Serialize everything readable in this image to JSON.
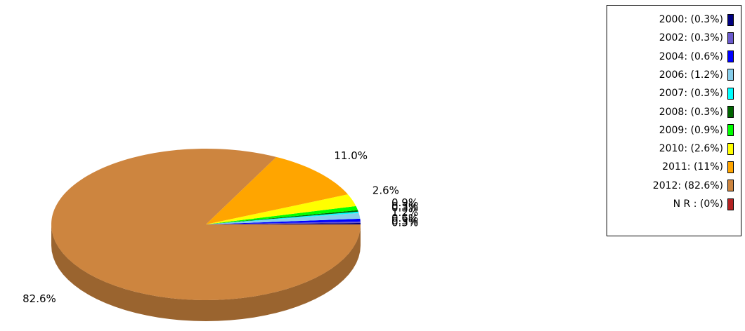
{
  "chart_data": {
    "type": "pie",
    "style": "3d",
    "title": "",
    "slices": [
      {
        "label": "2000",
        "value": 0.3,
        "value_label": "0.3%",
        "legend": "2000: (0.3%)",
        "color": "#000080"
      },
      {
        "label": "2002",
        "value": 0.3,
        "value_label": "0.3%",
        "legend": "2002: (0.3%)",
        "color": "#6a5acd"
      },
      {
        "label": "2004",
        "value": 0.6,
        "value_label": "0.6%",
        "legend": "2004: (0.6%)",
        "color": "#0000ff"
      },
      {
        "label": "2006",
        "value": 1.2,
        "value_label": "1.2%",
        "legend": "2006: (1.2%)",
        "color": "#87ceeb"
      },
      {
        "label": "2007",
        "value": 0.3,
        "value_label": "0.3%",
        "legend": "2007: (0.3%)",
        "color": "#00ffff"
      },
      {
        "label": "2008",
        "value": 0.3,
        "value_label": "0.3%",
        "legend": "2008: (0.3%)",
        "color": "#006400"
      },
      {
        "label": "2009",
        "value": 0.9,
        "value_label": "0.9%",
        "legend": "2009: (0.9%)",
        "color": "#00ff00"
      },
      {
        "label": "2010",
        "value": 2.6,
        "value_label": "2.6%",
        "legend": "2010: (2.6%)",
        "color": "#ffff00"
      },
      {
        "label": "2011",
        "value": 11.0,
        "value_label": "11.0%",
        "legend": "2011: (11%)",
        "color": "#ffa500"
      },
      {
        "label": "2012",
        "value": 82.6,
        "value_label": "82.6%",
        "legend": "2012: (82.6%)",
        "color": "#cd853f"
      },
      {
        "label": "N R",
        "value": 0,
        "value_label": "",
        "legend": "N R : (0%)",
        "color": "#b22222"
      }
    ],
    "legend_position": "top-right"
  }
}
